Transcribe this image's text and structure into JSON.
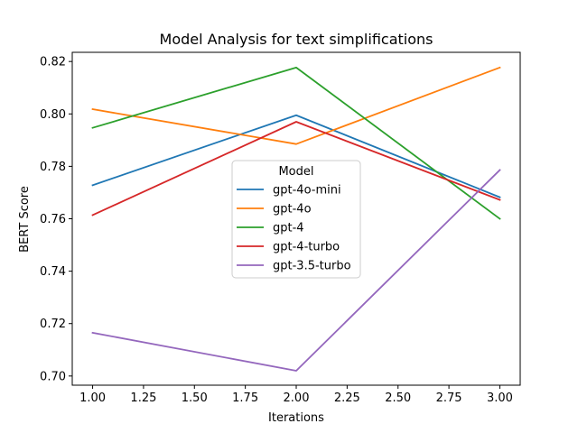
{
  "chart_data": {
    "type": "line",
    "title": "Model Analysis for text simplifications",
    "xlabel": "Iterations",
    "ylabel": "BERT Score",
    "x": [
      1,
      2,
      3
    ],
    "xlim": [
      0.9,
      3.1
    ],
    "ylim": [
      0.6965,
      0.8235
    ],
    "x_ticks": [
      "1.00",
      "1.25",
      "1.50",
      "1.75",
      "2.00",
      "2.25",
      "2.50",
      "2.75",
      "3.00"
    ],
    "y_ticks": [
      "0.70",
      "0.72",
      "0.74",
      "0.76",
      "0.78",
      "0.80",
      "0.82"
    ],
    "grid": false,
    "legend": {
      "title": "Model",
      "placement": "center"
    },
    "series": [
      {
        "name": "gpt-4o-mini",
        "color": "#1f77b4",
        "values": [
          0.7728,
          0.7995,
          0.7682
        ]
      },
      {
        "name": "gpt-4o",
        "color": "#ff7f0e",
        "values": [
          0.8018,
          0.7885,
          0.8177
        ]
      },
      {
        "name": "gpt-4",
        "color": "#2ca02c",
        "values": [
          0.7947,
          0.8177,
          0.76
        ]
      },
      {
        "name": "gpt-4-turbo",
        "color": "#d62728",
        "values": [
          0.7614,
          0.797,
          0.7672
        ]
      },
      {
        "name": "gpt-3.5-turbo",
        "color": "#9467bd",
        "values": [
          0.7165,
          0.702,
          0.7786
        ]
      }
    ]
  }
}
